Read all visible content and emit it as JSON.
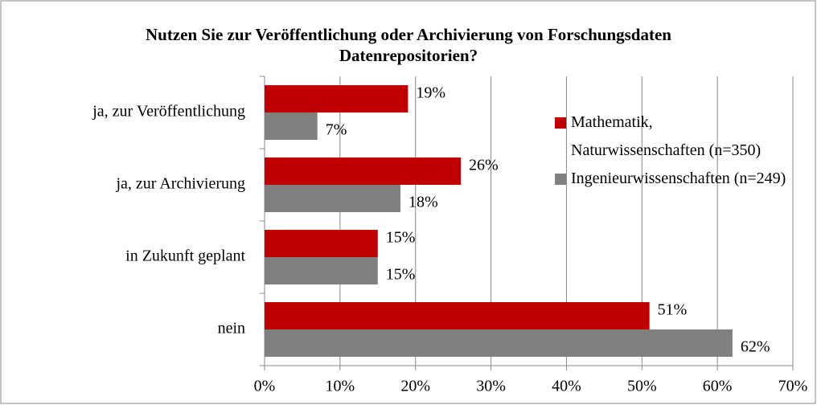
{
  "chart_data": {
    "type": "bar",
    "orientation": "horizontal",
    "title": "Nutzen Sie zur Veröffentlichung oder Archivierung von Forschungsdaten Datenrepositorien?",
    "categories": [
      "ja, zur Veröffentlichung",
      "ja, zur Archivierung",
      "in Zukunft geplant",
      "nein"
    ],
    "series": [
      {
        "name": "Mathematik, Naturwissenschaften (n=350)",
        "color": "#c00000",
        "values": [
          19,
          26,
          15,
          51
        ],
        "value_labels": [
          "19%",
          "26%",
          "15%",
          "51%"
        ]
      },
      {
        "name": "Ingenieurwissenschaften (n=249)",
        "color": "#808080",
        "values": [
          7,
          18,
          15,
          62
        ],
        "value_labels": [
          "7%",
          "18%",
          "15%",
          "62%"
        ]
      }
    ],
    "xlim": [
      0,
      70
    ],
    "xticks": [
      {
        "value": 0,
        "label": "0%"
      },
      {
        "value": 10,
        "label": "10%"
      },
      {
        "value": 20,
        "label": "20%"
      },
      {
        "value": 30,
        "label": "30%"
      },
      {
        "value": 40,
        "label": "40%"
      },
      {
        "value": 50,
        "label": "50%"
      },
      {
        "value": 60,
        "label": "60%"
      },
      {
        "value": 70,
        "label": "70%"
      }
    ],
    "grid": true,
    "legend": "right"
  }
}
